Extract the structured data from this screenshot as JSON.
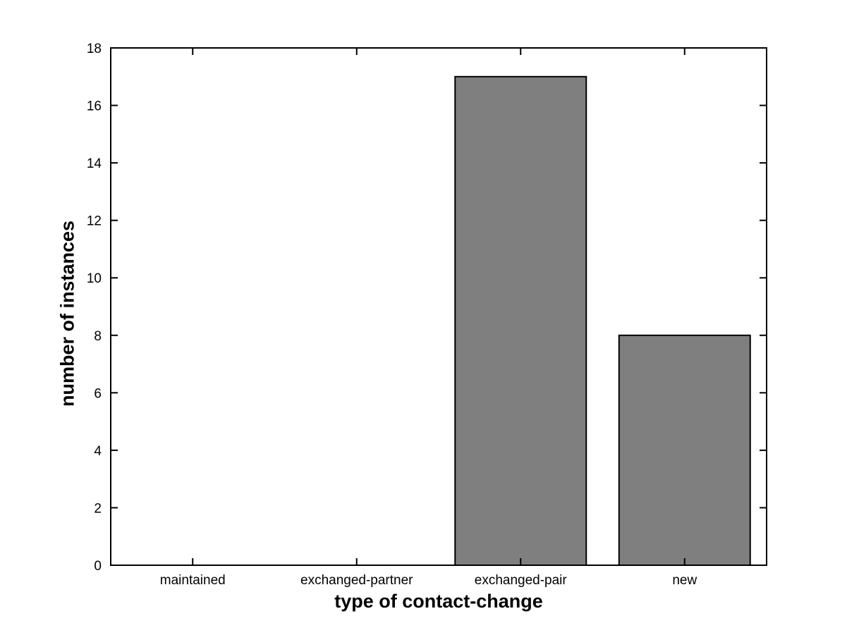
{
  "figure": {
    "background": "#ffffff"
  },
  "chart_data": {
    "type": "bar",
    "title": "",
    "categories": [
      "maintained",
      "exchanged-partner",
      "exchanged-pair",
      "new"
    ],
    "values": [
      0,
      0,
      17,
      8
    ],
    "xlabel": "type of contact-change",
    "ylabel": "number of instances",
    "ylim": [
      0,
      18
    ],
    "yticks": [
      0,
      2,
      4,
      6,
      8,
      10,
      12,
      14,
      16,
      18
    ],
    "bar_width_fraction": 0.8,
    "grid": false,
    "legend": null,
    "colors": {
      "bar_fill": "#7f7f7f",
      "bar_edge": "#000000",
      "axis": "#000000",
      "text": "#000000",
      "background": "#ffffff"
    }
  }
}
